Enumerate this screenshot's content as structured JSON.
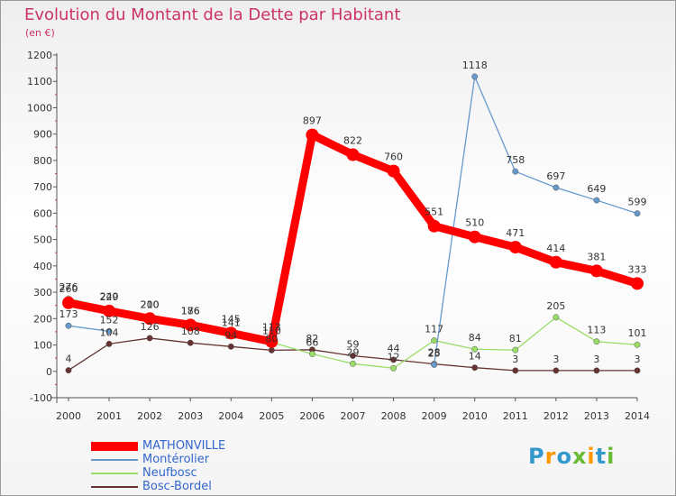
{
  "title": "Evolution du Montant de la Dette par Habitant",
  "subtitle": "(en €)",
  "logo": "Proxiti",
  "chart_data": {
    "type": "line",
    "x": [
      "2000",
      "2001",
      "2002",
      "2003",
      "2004",
      "2005",
      "2006",
      "2007",
      "2008",
      "2009",
      "2010",
      "2011",
      "2012",
      "2013",
      "2014"
    ],
    "ylim": [
      -100,
      1200
    ],
    "yticks": [
      -100,
      0,
      100,
      200,
      300,
      400,
      500,
      600,
      700,
      800,
      900,
      1000,
      1100,
      1200
    ],
    "grid": false,
    "legend_position": "bottom-left",
    "series": [
      {
        "name": "MATHONVILLE",
        "color": "#ff0000",
        "values": [
          260,
          229,
          200,
          176,
          145,
          113,
          897,
          822,
          760,
          551,
          510,
          471,
          414,
          381,
          333
        ],
        "labels": [
          "260",
          "229",
          "200",
          "176",
          "145",
          "113",
          "897",
          "822",
          "760",
          "551",
          "510",
          "471",
          "414",
          "381",
          "333"
        ]
      },
      {
        "name": "Montérolier",
        "color": "#6699cc",
        "values": [
          173,
          152,
          null,
          null,
          null,
          null,
          null,
          null,
          null,
          25,
          1118,
          758,
          697,
          649,
          599
        ],
        "labels": [
          "173",
          "152",
          "",
          "",
          "",
          "",
          "",
          "",
          "",
          "25",
          "1118",
          "758",
          "697",
          "649",
          "599"
        ]
      },
      {
        "name": "Neufbosc",
        "color": "#99dd66",
        "values": [
          276,
          240,
          210,
          186,
          141,
          110,
          66,
          29,
          12,
          117,
          84,
          81,
          205,
          113,
          101
        ],
        "labels": [
          "276",
          "240",
          "210",
          "186",
          "141",
          "110",
          "66",
          "29",
          "12",
          "117",
          "84",
          "81",
          "205",
          "113",
          "101"
        ]
      },
      {
        "name": "Bosc-Bordel",
        "color": "#663333",
        "values": [
          4,
          104,
          126,
          108,
          94,
          80,
          82,
          59,
          44,
          28,
          14,
          3,
          3,
          3,
          3
        ],
        "labels": [
          "4",
          "104",
          "126",
          "108",
          "94",
          "80",
          "82",
          "59",
          "44",
          "28",
          "14",
          "3",
          "3",
          "3",
          "3"
        ]
      }
    ]
  }
}
